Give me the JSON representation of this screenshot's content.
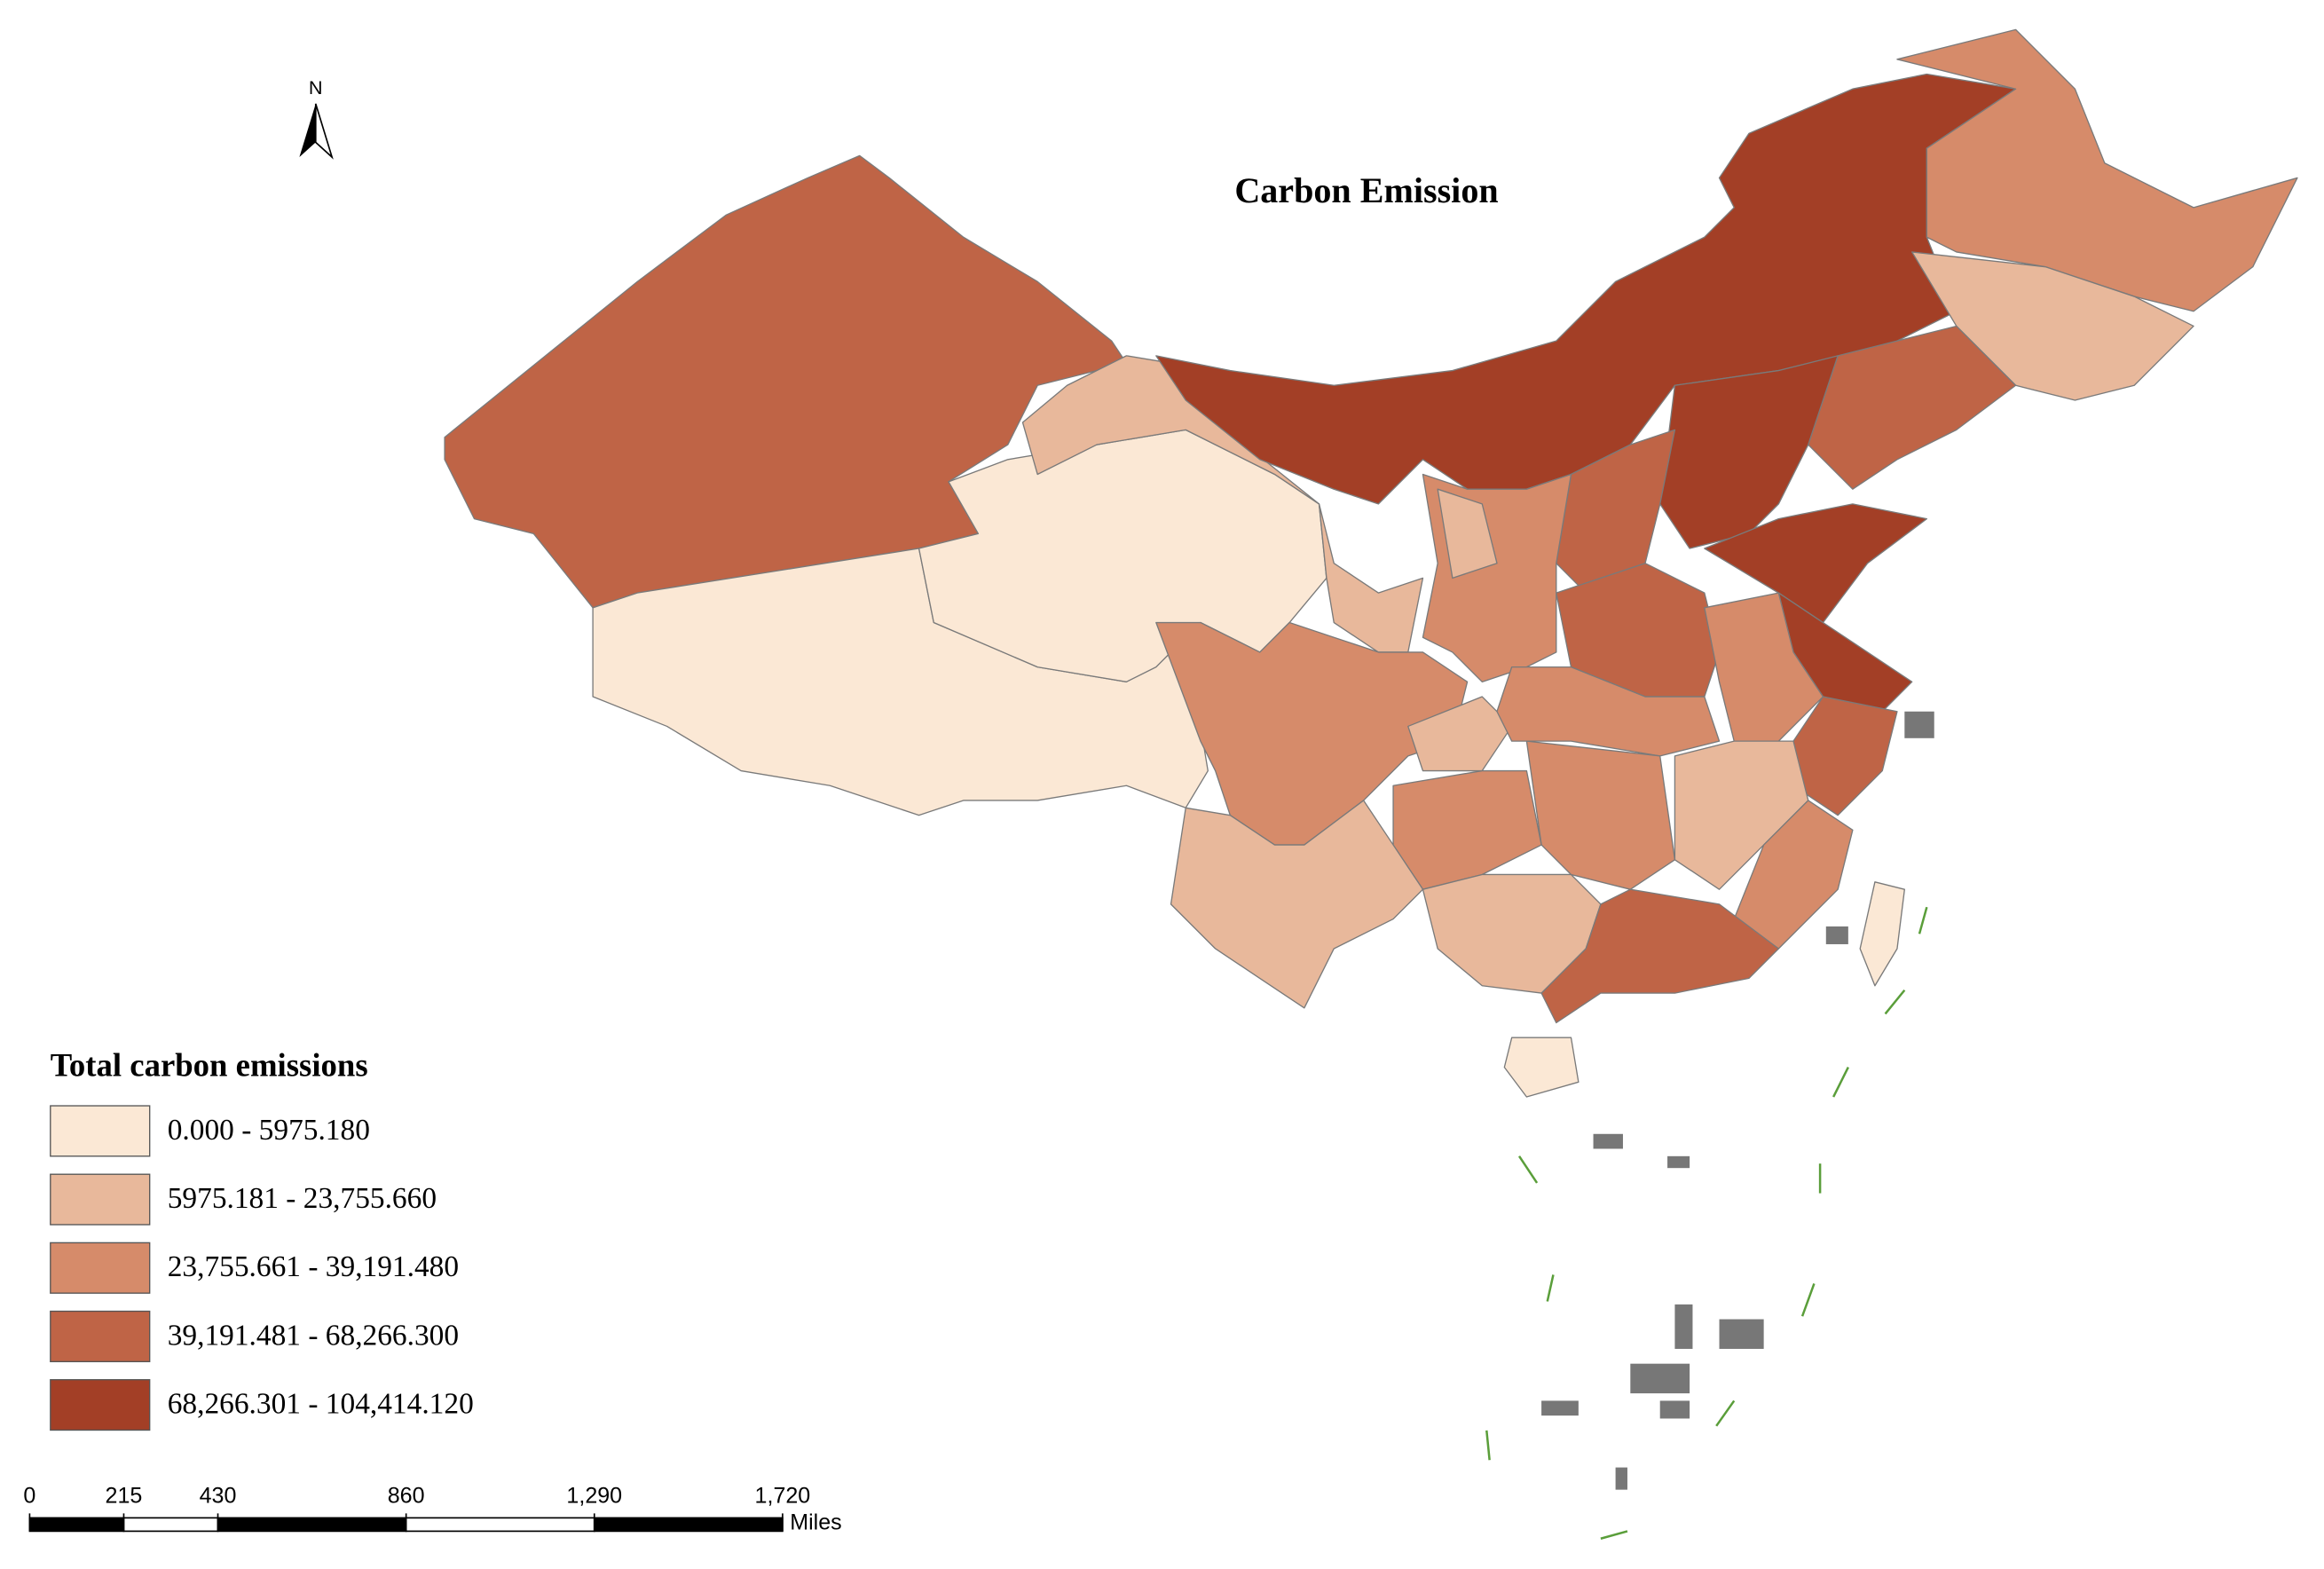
{
  "map": {
    "title": "Carbon  Emission",
    "north_label": "N",
    "legend": {
      "title": "Total carbon emissions",
      "classes": [
        {
          "label": "0.000 - 5975.180",
          "color": "#fbe8d5"
        },
        {
          "label": "5975.181 - 23,755.660",
          "color": "#e8b89b"
        },
        {
          "label": "23,755.661 - 39,191.480",
          "color": "#d68b6a"
        },
        {
          "label": "39,191.481 - 68,266.300",
          "color": "#bf6446"
        },
        {
          "label": "68,266.301 - 104,414.120",
          "color": "#a33f26"
        }
      ]
    },
    "scale_bar": {
      "unit": "Miles",
      "xlim": [
        0,
        1720
      ],
      "ticks": [
        0,
        215,
        430,
        860,
        {
          "value": 1290,
          "label": "1,290"
        },
        {
          "value": 1720,
          "label": "1,720"
        }
      ]
    }
  }
}
